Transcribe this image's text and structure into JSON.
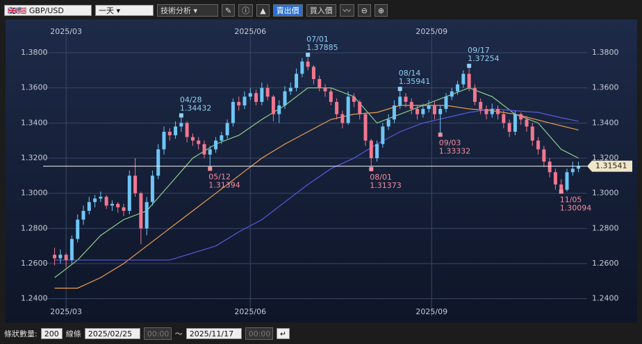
{
  "toolbar": {
    "symbol": "GBP/USD",
    "period": "一天",
    "analysis": "技術分析",
    "bid": "賣出價",
    "ask": "買入價"
  },
  "footer": {
    "count_label": "條狀數量:",
    "count": "200",
    "line_label": "線條",
    "from": "2025/02/25",
    "from_time": "00:00",
    "tilde": "～",
    "to": "2025/11/17",
    "to_time": "00:00"
  },
  "chart_data": {
    "type": "candlestick",
    "ylim": [
      1.23,
      1.395
    ],
    "yticks": [
      {
        "value": 1.24,
        "label": "1.2400"
      },
      {
        "value": 1.26,
        "label": "1.2600"
      },
      {
        "value": 1.28,
        "label": "1.2800"
      },
      {
        "value": 1.3,
        "label": "1.3000"
      },
      {
        "value": 1.32,
        "label": "1.3200"
      },
      {
        "value": 1.34,
        "label": "1.3400"
      },
      {
        "value": 1.36,
        "label": "1.3600"
      },
      {
        "value": 1.38,
        "label": "1.3800"
      }
    ],
    "xlim": [
      -2,
      92.5
    ],
    "xticks": [
      {
        "value": 2,
        "label": "2025/03"
      },
      {
        "value": 34,
        "label": "2025/06"
      },
      {
        "value": 65.5,
        "label": "2025/09"
      }
    ],
    "grid": true,
    "up_color": "#6ec6f5",
    "down_color": "#f2768f",
    "candles": [
      [
        1.265,
        1.269,
        1.259,
        1.263
      ],
      [
        1.263,
        1.268,
        1.26,
        1.265
      ],
      [
        1.265,
        1.266,
        1.258,
        1.262
      ],
      [
        1.262,
        1.276,
        1.26,
        1.274
      ],
      [
        1.274,
        1.288,
        1.272,
        1.285
      ],
      [
        1.285,
        1.293,
        1.282,
        1.29
      ],
      [
        1.29,
        1.298,
        1.288,
        1.295
      ],
      [
        1.295,
        1.299,
        1.292,
        1.297
      ],
      [
        1.297,
        1.301,
        1.295,
        1.298
      ],
      [
        1.298,
        1.299,
        1.291,
        1.293
      ],
      [
        1.293,
        1.296,
        1.29,
        1.294
      ],
      [
        1.294,
        1.295,
        1.289,
        1.292
      ],
      [
        1.292,
        1.294,
        1.287,
        1.29
      ],
      [
        1.29,
        1.313,
        1.288,
        1.31
      ],
      [
        1.31,
        1.32,
        1.298,
        1.3
      ],
      [
        1.3,
        1.301,
        1.271,
        1.28
      ],
      [
        1.28,
        1.298,
        1.276,
        1.295
      ],
      [
        1.295,
        1.313,
        1.293,
        1.31
      ],
      [
        1.31,
        1.328,
        1.308,
        1.325
      ],
      [
        1.325,
        1.338,
        1.322,
        1.335
      ],
      [
        1.335,
        1.337,
        1.33,
        1.333
      ],
      [
        1.333,
        1.341,
        1.331,
        1.338
      ],
      [
        1.338,
        1.3443,
        1.335,
        1.34
      ],
      [
        1.34,
        1.341,
        1.329,
        1.332
      ],
      [
        1.332,
        1.334,
        1.327,
        1.33
      ],
      [
        1.33,
        1.332,
        1.325,
        1.328
      ],
      [
        1.328,
        1.33,
        1.32,
        1.322
      ],
      [
        1.322,
        1.327,
        1.3139,
        1.325
      ],
      [
        1.325,
        1.332,
        1.323,
        1.33
      ],
      [
        1.33,
        1.335,
        1.328,
        1.333
      ],
      [
        1.333,
        1.342,
        1.331,
        1.34
      ],
      [
        1.34,
        1.354,
        1.338,
        1.352
      ],
      [
        1.352,
        1.355,
        1.347,
        1.35
      ],
      [
        1.35,
        1.358,
        1.348,
        1.355
      ],
      [
        1.355,
        1.36,
        1.353,
        1.357
      ],
      [
        1.357,
        1.359,
        1.35,
        1.352
      ],
      [
        1.352,
        1.363,
        1.35,
        1.36
      ],
      [
        1.36,
        1.362,
        1.353,
        1.355
      ],
      [
        1.355,
        1.356,
        1.341,
        1.345
      ],
      [
        1.345,
        1.353,
        1.34,
        1.35
      ],
      [
        1.35,
        1.361,
        1.348,
        1.358
      ],
      [
        1.358,
        1.363,
        1.356,
        1.36
      ],
      [
        1.36,
        1.371,
        1.358,
        1.368
      ],
      [
        1.368,
        1.377,
        1.366,
        1.375
      ],
      [
        1.375,
        1.3789,
        1.37,
        1.372
      ],
      [
        1.372,
        1.373,
        1.362,
        1.365
      ],
      [
        1.365,
        1.367,
        1.358,
        1.36
      ],
      [
        1.36,
        1.362,
        1.355,
        1.358
      ],
      [
        1.358,
        1.36,
        1.35,
        1.352
      ],
      [
        1.352,
        1.354,
        1.342,
        1.345
      ],
      [
        1.345,
        1.347,
        1.337,
        1.34
      ],
      [
        1.34,
        1.358,
        1.339,
        1.355
      ],
      [
        1.355,
        1.357,
        1.349,
        1.352
      ],
      [
        1.352,
        1.353,
        1.342,
        1.345
      ],
      [
        1.345,
        1.346,
        1.327,
        1.33
      ],
      [
        1.33,
        1.331,
        1.3137,
        1.32
      ],
      [
        1.32,
        1.33,
        1.318,
        1.328
      ],
      [
        1.328,
        1.34,
        1.326,
        1.338
      ],
      [
        1.338,
        1.345,
        1.336,
        1.342
      ],
      [
        1.342,
        1.353,
        1.34,
        1.35
      ],
      [
        1.35,
        1.3594,
        1.348,
        1.355
      ],
      [
        1.355,
        1.357,
        1.349,
        1.352
      ],
      [
        1.352,
        1.354,
        1.345,
        1.348
      ],
      [
        1.348,
        1.35,
        1.342,
        1.345
      ],
      [
        1.345,
        1.351,
        1.343,
        1.348
      ],
      [
        1.348,
        1.353,
        1.346,
        1.35
      ],
      [
        1.35,
        1.352,
        1.342,
        1.345
      ],
      [
        1.345,
        1.35,
        1.3333,
        1.348
      ],
      [
        1.348,
        1.357,
        1.346,
        1.355
      ],
      [
        1.355,
        1.36,
        1.353,
        1.358
      ],
      [
        1.358,
        1.364,
        1.356,
        1.362
      ],
      [
        1.362,
        1.37,
        1.36,
        1.368
      ],
      [
        1.368,
        1.3725,
        1.358,
        1.36
      ],
      [
        1.36,
        1.362,
        1.35,
        1.352
      ],
      [
        1.352,
        1.354,
        1.345,
        1.348
      ],
      [
        1.348,
        1.35,
        1.342,
        1.345
      ],
      [
        1.345,
        1.351,
        1.343,
        1.348
      ],
      [
        1.348,
        1.35,
        1.342,
        1.345
      ],
      [
        1.345,
        1.347,
        1.337,
        1.34
      ],
      [
        1.34,
        1.342,
        1.332,
        1.335
      ],
      [
        1.335,
        1.347,
        1.333,
        1.345
      ],
      [
        1.345,
        1.346,
        1.339,
        1.342
      ],
      [
        1.342,
        1.344,
        1.335,
        1.338
      ],
      [
        1.338,
        1.34,
        1.327,
        1.33
      ],
      [
        1.33,
        1.332,
        1.322,
        1.325
      ],
      [
        1.325,
        1.327,
        1.315,
        1.318
      ],
      [
        1.318,
        1.32,
        1.309,
        1.312
      ],
      [
        1.312,
        1.314,
        1.302,
        1.305
      ],
      [
        1.305,
        1.308,
        1.3009,
        1.302
      ],
      [
        1.302,
        1.314,
        1.301,
        1.312
      ],
      [
        1.312,
        1.318,
        1.31,
        1.314
      ],
      [
        1.314,
        1.318,
        1.312,
        1.3154
      ]
    ],
    "ma": [
      {
        "color": "#8fd18a",
        "x": [
          0,
          4,
          8,
          12,
          16,
          20,
          24,
          28,
          32,
          36,
          40,
          44,
          48,
          52,
          56,
          60,
          64,
          68,
          72,
          76,
          80,
          84,
          88,
          91
        ],
        "values": [
          1.252,
          1.262,
          1.276,
          1.285,
          1.29,
          1.305,
          1.32,
          1.328,
          1.333,
          1.342,
          1.35,
          1.36,
          1.36,
          1.355,
          1.34,
          1.345,
          1.35,
          1.355,
          1.36,
          1.355,
          1.345,
          1.34,
          1.325,
          1.32
        ]
      },
      {
        "color": "#f0a050",
        "x": [
          0,
          4,
          8,
          12,
          16,
          20,
          24,
          28,
          32,
          36,
          40,
          44,
          48,
          52,
          56,
          60,
          64,
          68,
          72,
          76,
          80,
          86,
          91
        ],
        "values": [
          1.246,
          1.246,
          1.252,
          1.26,
          1.27,
          1.28,
          1.29,
          1.3,
          1.31,
          1.32,
          1.328,
          1.335,
          1.342,
          1.345,
          1.346,
          1.35,
          1.35,
          1.35,
          1.348,
          1.347,
          1.345,
          1.34,
          1.336
        ]
      },
      {
        "color": "#5a5ae0",
        "x": [
          0,
          8,
          16,
          20,
          24,
          28,
          32,
          36,
          40,
          44,
          48,
          52,
          56,
          60,
          64,
          68,
          72,
          76,
          80,
          84,
          88,
          91
        ],
        "values": [
          1.262,
          1.262,
          1.262,
          1.262,
          1.266,
          1.27,
          1.278,
          1.285,
          1.295,
          1.305,
          1.314,
          1.32,
          1.328,
          1.335,
          1.34,
          1.343,
          1.346,
          1.348,
          1.347,
          1.346,
          1.343,
          1.341
        ]
      }
    ],
    "annotations": [
      {
        "candle": 22,
        "date": "04/28",
        "value": 1.34432,
        "side": "above"
      },
      {
        "candle": 27,
        "date": "05/12",
        "value": 1.31394,
        "side": "below"
      },
      {
        "candle": 44,
        "date": "07/01",
        "value": 1.37885,
        "side": "above"
      },
      {
        "candle": 55,
        "date": "08/01",
        "value": 1.31373,
        "side": "below"
      },
      {
        "candle": 60,
        "date": "08/14",
        "value": 1.35941,
        "side": "above"
      },
      {
        "candle": 67,
        "date": "09/03",
        "value": 1.33332,
        "side": "below"
      },
      {
        "candle": 72,
        "date": "09/17",
        "value": 1.37254,
        "side": "above"
      },
      {
        "candle": 88,
        "date": "11/05",
        "value": 1.30094,
        "side": "below"
      }
    ],
    "last": 1.31541
  }
}
